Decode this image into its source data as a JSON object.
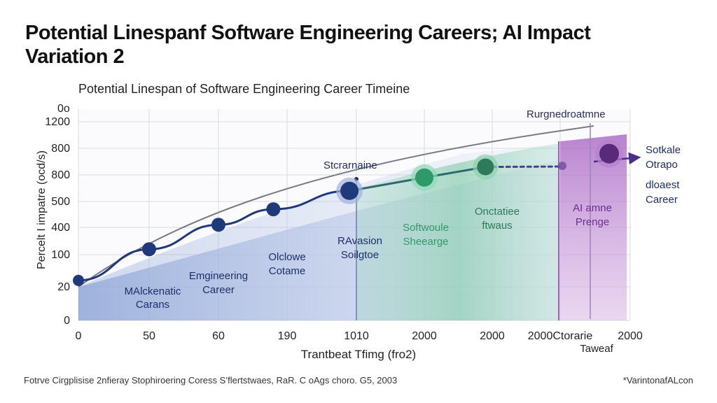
{
  "header": {
    "title_line1": "Potential Linespanf Software Engineering Careers; AI Impact",
    "title_line2": "Variation 2",
    "subtitle": "Potential Linespan  of Software Engineering Career Timeine"
  },
  "footer": {
    "source": "Fotrve Cirgplisise 2nfieray Stophiroering Coress S’flertstwaes, RaR. C oAgs choro. G5, 2003",
    "watermark": "*VarintonafALcon"
  },
  "chart_data": {
    "type": "line",
    "title": "Potential Linespan  of Software Engineering Career Timeine",
    "xlabel": "Trantbeat Tfimg (fro2)",
    "ylabel": "Percelt I impatre (ocd/s)",
    "y_corner_label": "0o",
    "x_tick_labels": [
      "0",
      "50",
      "60",
      "190",
      "1010",
      "2000",
      "2000",
      "2000Ctorarie",
      "2000"
    ],
    "y_tick_labels": [
      "0",
      "20",
      "100",
      "400",
      "500",
      "800",
      "800",
      "1200"
    ],
    "grid": true,
    "colors": {
      "primary": "#1f3a7a",
      "band_blue": "#aebfe3",
      "band_green": "#9fdcc0",
      "green": "#2e9a6a",
      "purple": "#6a2f8a",
      "band_purple": "#c99ad8",
      "trend": "#7a7a85"
    },
    "series": [
      {
        "role": "main_trajectory",
        "points": [
          {
            "x_index": 0,
            "y_index": 1.2
          },
          {
            "x_index": 1,
            "y_index": 2.2
          },
          {
            "x_index": 2,
            "y_index": 3.1
          },
          {
            "x_index": 2.8,
            "y_index": 3.7
          },
          {
            "x_index": 3.9,
            "y_index": 4.4
          },
          {
            "x_index": 5.0,
            "y_index": 4.9
          },
          {
            "x_index": 5.9,
            "y_index": 5.3
          },
          {
            "x_index": 7.7,
            "y_index": 5.8
          }
        ]
      }
    ],
    "annotations": {
      "top_marker": "Rurgnedroatmne",
      "mid_label": "Stcrarnaine",
      "right_label": [
        "Sotkale",
        "Otrapo",
        "dloaest",
        "Career"
      ],
      "engineering_career": [
        "Emgineering",
        "Career"
      ],
      "malcenatic": [
        "MAlckenatic",
        "Carans"
      ],
      "olclowe": [
        "Olclowe",
        "Cotame"
      ],
      "ravasion": [
        "RAvasion",
        "Soilgtoe"
      ],
      "softwoule": [
        "Softwoule",
        "Sheearge"
      ],
      "onctatee": [
        "Onctatiee",
        "ftwaus"
      ],
      "ai_phrenge": [
        "AI amne",
        "Prenge"
      ],
      "taweaf": "Taweaf"
    }
  }
}
